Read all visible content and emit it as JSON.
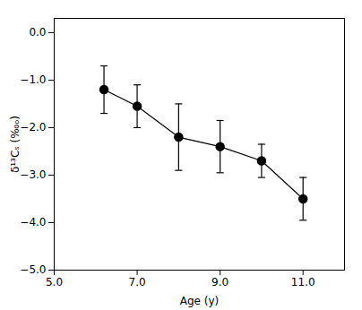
{
  "chart_data": {
    "type": "line",
    "xlabel": "Age (y)",
    "ylabel": "δ¹³Cₛ (‰ₒ)",
    "x": [
      6.2,
      7.0,
      8.0,
      9.0,
      10.0,
      11.0
    ],
    "values": [
      -1.2,
      -1.55,
      -2.2,
      -2.4,
      -2.7,
      -3.5
    ],
    "yerr": [
      0.5,
      0.45,
      0.7,
      0.55,
      0.35,
      0.45
    ],
    "xlim": [
      5,
      12
    ],
    "ylim": [
      -5,
      0.3
    ],
    "xticks": [
      5,
      7,
      9,
      11
    ],
    "yticks": [
      0,
      -1,
      -2,
      -3,
      -4,
      -5
    ],
    "color": "black",
    "marker": "o",
    "grid": false
  }
}
